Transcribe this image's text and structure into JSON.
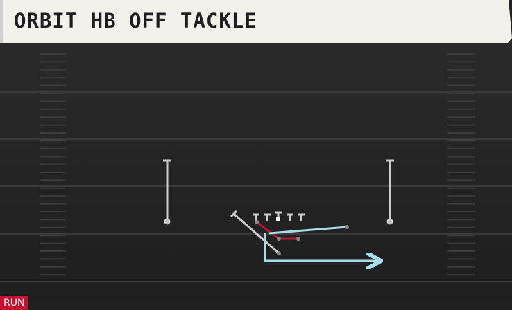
{
  "header": {
    "title": "ORBIT HB OFF TACKLE"
  },
  "badge": {
    "label": "RUN"
  }
}
